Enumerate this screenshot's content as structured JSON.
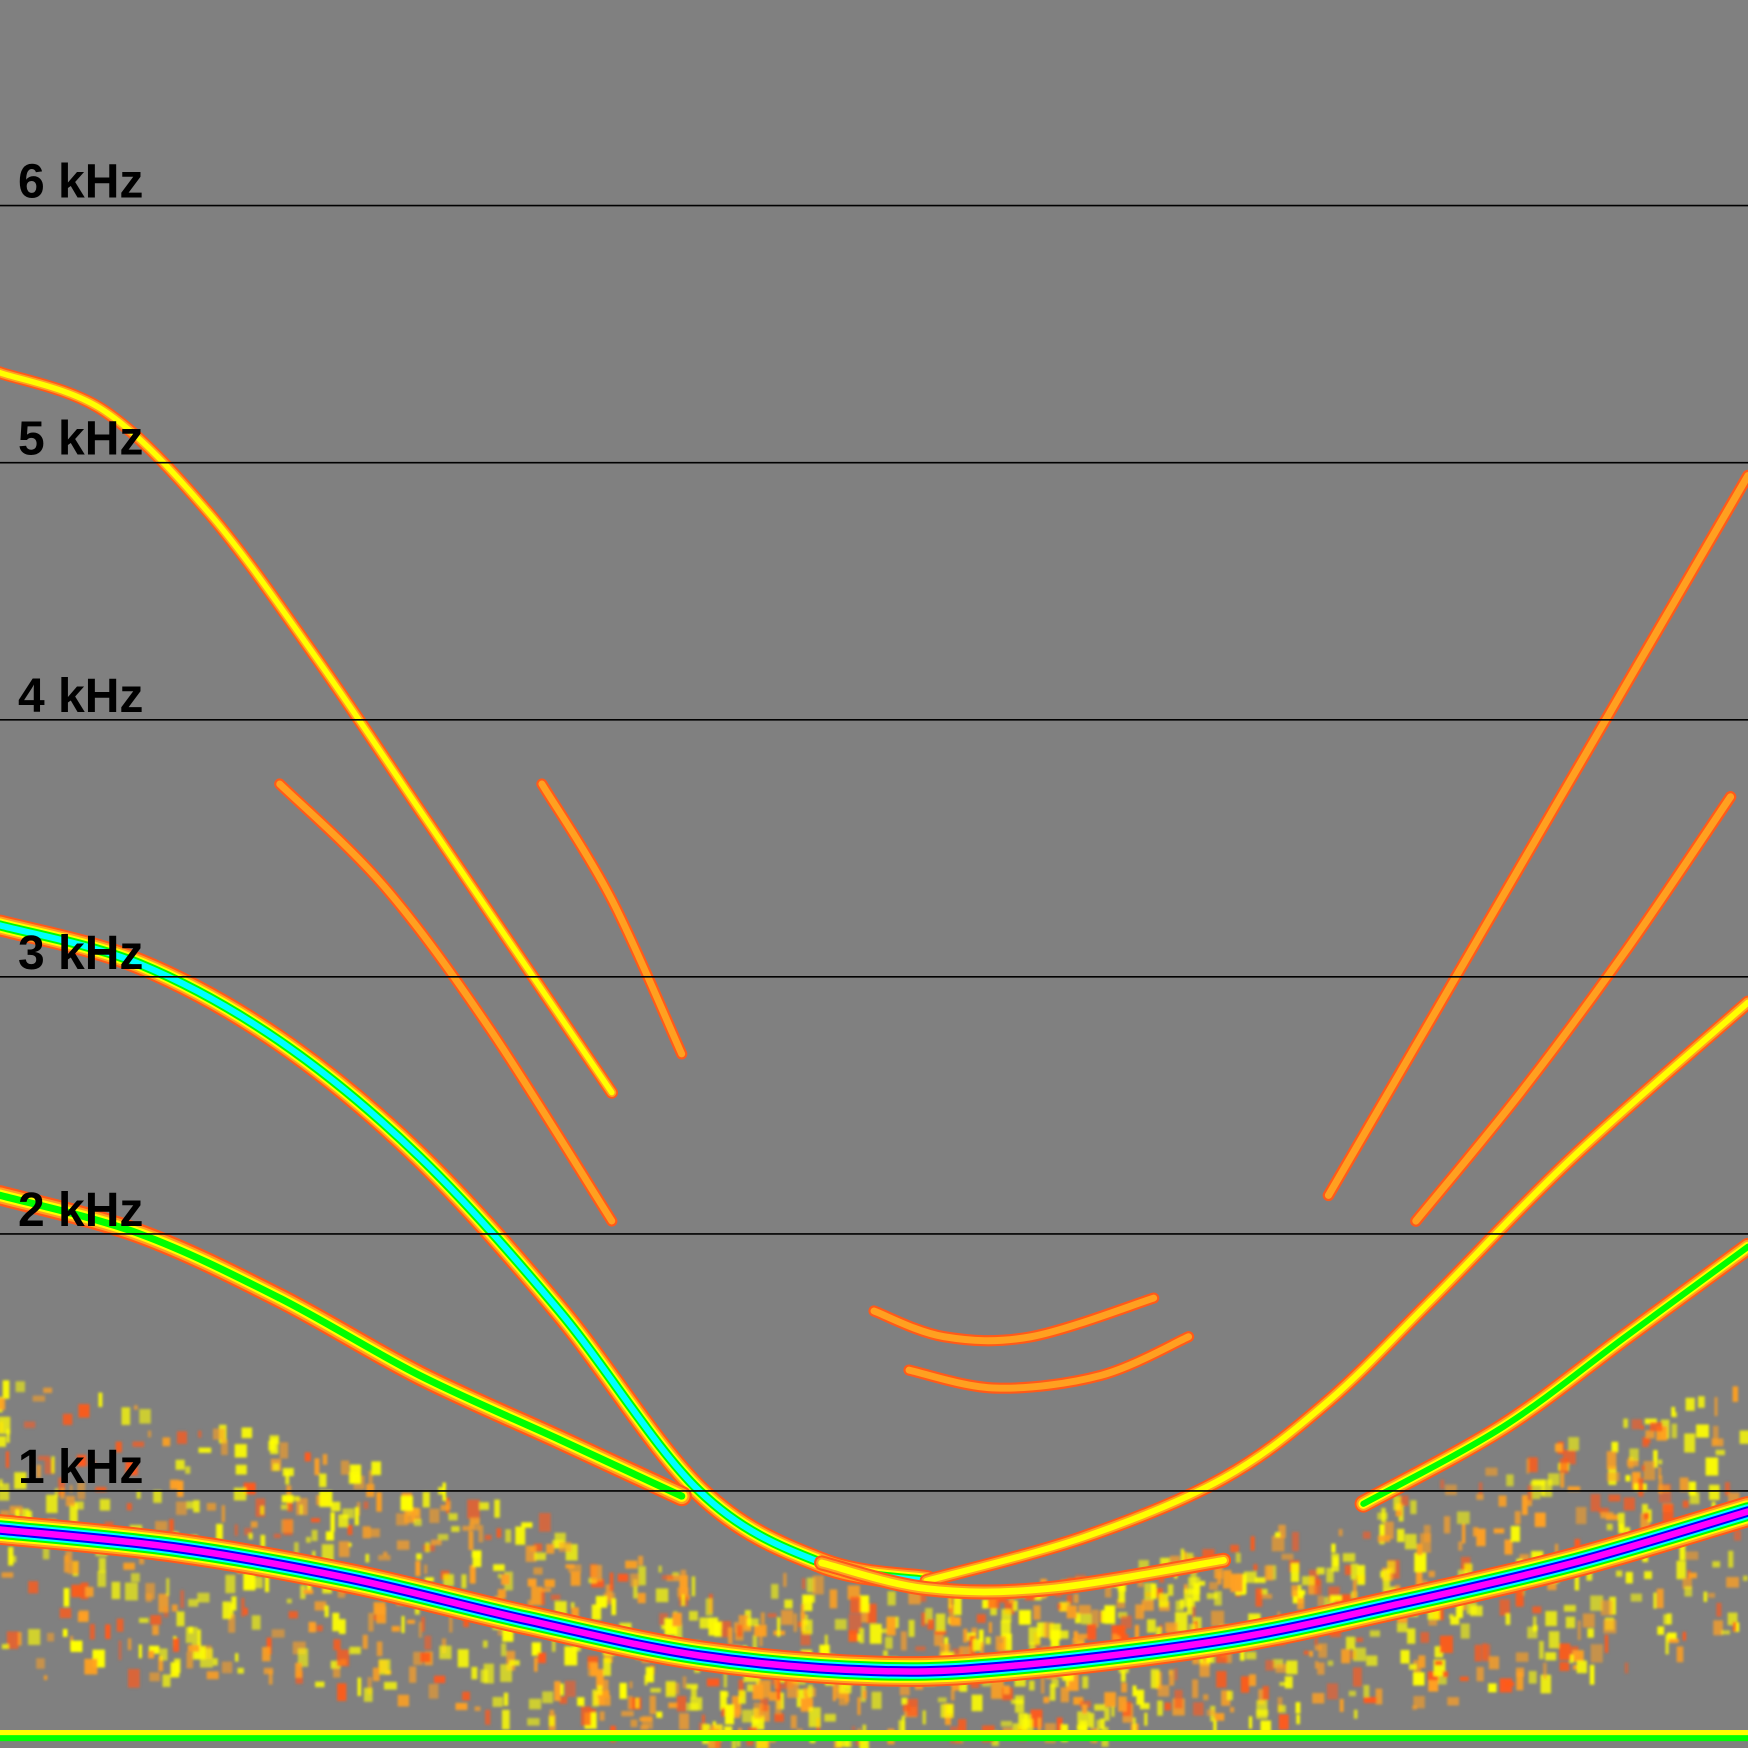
{
  "chart_data": {
    "type": "heatmap",
    "title": "",
    "xlabel": "",
    "ylabel": "",
    "y_unit": "kHz",
    "ylim": [
      0,
      6.8
    ],
    "grid": true,
    "yticks": [
      {
        "value": 6,
        "label": "6 kHz"
      },
      {
        "value": 5,
        "label": "5 kHz"
      },
      {
        "value": 4,
        "label": "4 kHz"
      },
      {
        "value": 3,
        "label": "3 kHz"
      },
      {
        "value": 2,
        "label": "2 kHz"
      },
      {
        "value": 1,
        "label": "1 kHz"
      }
    ],
    "colormap": [
      "#ff5a1a",
      "#ffa020",
      "#ffff00",
      "#00ff00",
      "#00ffff",
      "#0000ff",
      "#ff00ff"
    ],
    "background": "#808080",
    "xlim": [
      0,
      1
    ],
    "series": [
      {
        "intensity": 0.95,
        "points": [
          [
            0,
            0.85
          ],
          [
            0.1,
            0.78
          ],
          [
            0.2,
            0.66
          ],
          [
            0.3,
            0.5
          ],
          [
            0.4,
            0.36
          ],
          [
            0.5,
            0.3
          ],
          [
            0.58,
            0.32
          ],
          [
            0.7,
            0.42
          ],
          [
            0.8,
            0.56
          ],
          [
            0.9,
            0.72
          ],
          [
            1,
            0.92
          ]
        ]
      },
      {
        "intensity": 0.6,
        "points": [
          [
            0,
            3.2
          ],
          [
            0.08,
            3.05
          ],
          [
            0.16,
            2.75
          ],
          [
            0.24,
            2.3
          ],
          [
            0.32,
            1.7
          ],
          [
            0.4,
            1.0
          ],
          [
            0.47,
            0.72
          ],
          [
            0.53,
            0.65
          ]
        ]
      },
      {
        "intensity": 0.55,
        "points": [
          [
            0,
            2.15
          ],
          [
            0.08,
            2.0
          ],
          [
            0.16,
            1.75
          ],
          [
            0.24,
            1.45
          ],
          [
            0.32,
            1.2
          ],
          [
            0.39,
            0.98
          ]
        ]
      },
      {
        "intensity": 0.25,
        "points": [
          [
            0,
            5.35
          ],
          [
            0.06,
            5.2
          ],
          [
            0.12,
            4.8
          ],
          [
            0.18,
            4.25
          ],
          [
            0.24,
            3.65
          ],
          [
            0.3,
            3.05
          ],
          [
            0.35,
            2.55
          ]
        ]
      },
      {
        "intensity": 0.2,
        "points": [
          [
            0.16,
            3.75
          ],
          [
            0.22,
            3.35
          ],
          [
            0.28,
            2.8
          ],
          [
            0.35,
            2.05
          ]
        ]
      },
      {
        "intensity": 0.2,
        "points": [
          [
            0.31,
            3.75
          ],
          [
            0.35,
            3.3
          ],
          [
            0.39,
            2.7
          ]
        ]
      },
      {
        "intensity": 0.3,
        "points": [
          [
            0.53,
            0.65
          ],
          [
            0.62,
            0.82
          ],
          [
            0.7,
            1.05
          ],
          [
            0.76,
            1.35
          ],
          [
            0.82,
            1.75
          ],
          [
            0.9,
            2.3
          ],
          [
            1,
            2.9
          ]
        ]
      },
      {
        "intensity": 0.45,
        "points": [
          [
            0.78,
            0.95
          ],
          [
            0.86,
            1.25
          ],
          [
            0.93,
            1.6
          ],
          [
            1,
            1.95
          ]
        ]
      },
      {
        "intensity": 0.22,
        "points": [
          [
            0.76,
            2.15
          ],
          [
            0.82,
            2.85
          ],
          [
            0.88,
            3.55
          ],
          [
            0.94,
            4.25
          ],
          [
            1,
            4.95
          ]
        ]
      },
      {
        "intensity": 0.22,
        "points": [
          [
            0.81,
            2.05
          ],
          [
            0.87,
            2.55
          ],
          [
            0.93,
            3.1
          ],
          [
            0.99,
            3.7
          ]
        ]
      },
      {
        "intensity": 0.2,
        "points": [
          [
            0.5,
            1.7
          ],
          [
            0.54,
            1.6
          ],
          [
            0.59,
            1.6
          ],
          [
            0.66,
            1.75
          ]
        ]
      },
      {
        "intensity": 0.2,
        "points": [
          [
            0.52,
            1.47
          ],
          [
            0.57,
            1.4
          ],
          [
            0.63,
            1.45
          ],
          [
            0.68,
            1.6
          ]
        ]
      },
      {
        "intensity": 0.35,
        "points": [
          [
            0.47,
            0.72
          ],
          [
            0.53,
            0.62
          ],
          [
            0.6,
            0.62
          ],
          [
            0.7,
            0.73
          ]
        ]
      }
    ]
  }
}
